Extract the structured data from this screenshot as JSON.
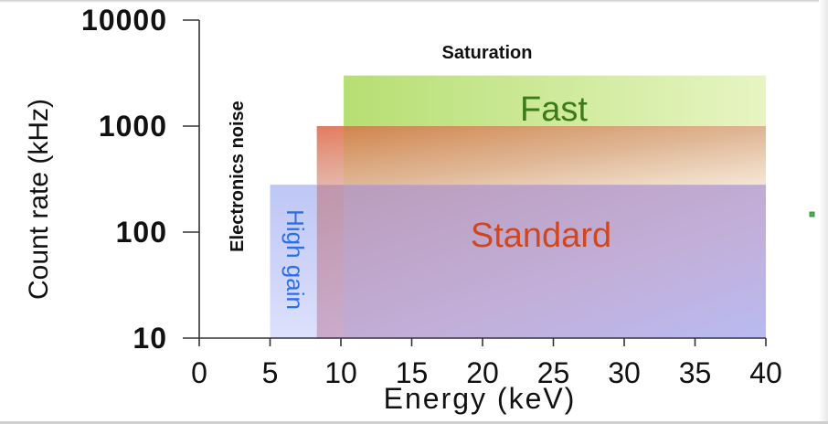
{
  "chart_data": {
    "type": "area",
    "xlabel": "Energy (keV)",
    "ylabel": "Count rate (kHz)",
    "xlim": [
      0,
      40
    ],
    "ylim": [
      10,
      10000
    ],
    "yscale": "log",
    "x_ticks": [
      0,
      5,
      10,
      15,
      20,
      25,
      30,
      35,
      40
    ],
    "x_tick_labels": [
      "0",
      "5",
      "10",
      "15",
      "20",
      "25",
      "30",
      "35",
      "40"
    ],
    "y_ticks": [
      10,
      100,
      1000,
      10000
    ],
    "y_tick_labels": [
      "10",
      "100",
      "1000",
      "10000"
    ],
    "grid": false,
    "regions": [
      {
        "name": "High gain",
        "x_range": [
          5,
          8.3
        ],
        "y_range": [
          10,
          280
        ],
        "color": "#9aa8f0"
      },
      {
        "name": "Standard",
        "x_range": [
          8.3,
          40
        ],
        "y_range": [
          10,
          1000
        ],
        "color": "#e06a4a"
      },
      {
        "name": "Fast",
        "x_range": [
          10.2,
          40
        ],
        "y_range": [
          10,
          3000
        ],
        "color": "#b8e05a"
      }
    ],
    "annotations": [
      {
        "text": "Saturation"
      },
      {
        "text": "Electronics noise"
      }
    ]
  },
  "colors": {
    "high_gain_text": "#2a6fe8",
    "standard_text": "#d2461e",
    "fast_text": "#3d7a1a"
  }
}
